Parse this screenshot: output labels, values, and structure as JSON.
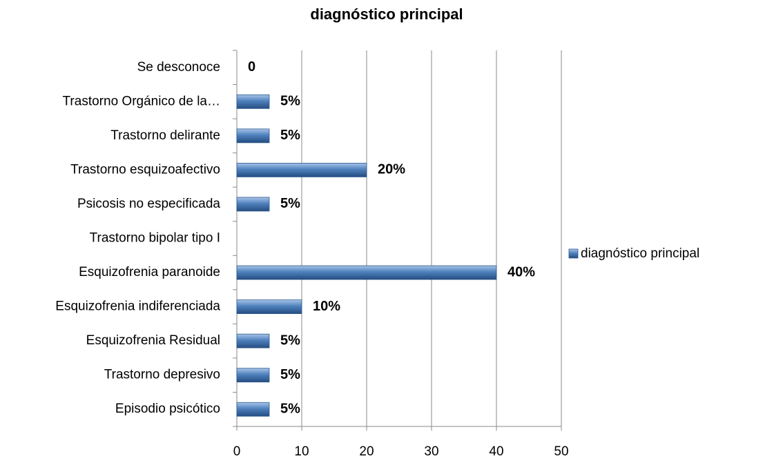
{
  "chart_data": {
    "type": "bar",
    "orientation": "horizontal",
    "title": "diagnóstico principal",
    "categories": [
      "Se desconoce",
      "Trastorno Orgánico de la…",
      "Trastorno delirante",
      "Trastorno esquizoafectivo",
      "Psicosis no especificada",
      "Trastorno bipolar tipo I",
      "Esquizofrenia paranoide",
      "Esquizofrenia indiferenciada",
      "Esquizofrenia Residual",
      "Trastorno depresivo",
      "Episodio psicótico"
    ],
    "series": [
      {
        "name": "diagnóstico principal",
        "color": "#4f81bd",
        "values": [
          0,
          5,
          5,
          20,
          5,
          null,
          40,
          10,
          5,
          5,
          5
        ],
        "value_labels": [
          "0",
          "5%",
          "5%",
          "20%",
          "5%",
          null,
          "40%",
          "10%",
          "5%",
          "5%",
          "5%"
        ]
      }
    ],
    "xlim": [
      0,
      50
    ],
    "xticks": [
      0,
      10,
      20,
      30,
      40,
      50
    ],
    "grid": true,
    "legend": "right"
  }
}
